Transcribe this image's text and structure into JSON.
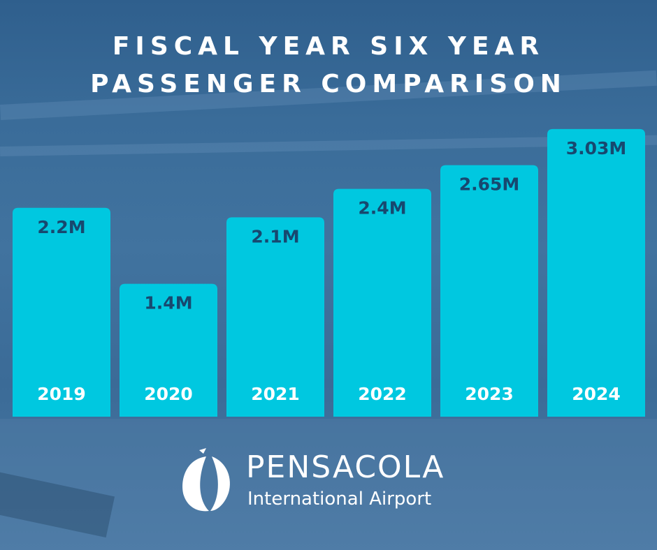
{
  "chart_data": {
    "type": "bar",
    "title_line1": "FISCAL YEAR SIX YEAR",
    "title_line2": "PASSENGER COMPARISON",
    "categories": [
      "2019",
      "2020",
      "2021",
      "2022",
      "2023",
      "2024"
    ],
    "values": [
      2.2,
      1.4,
      2.1,
      2.4,
      2.65,
      3.03
    ],
    "value_labels": [
      "2.2M",
      "1.4M",
      "2.1M",
      "2.4M",
      "2.65M",
      "3.03M"
    ],
    "unit": "M",
    "xlabel": "",
    "ylabel": "",
    "grid": false,
    "bar_color": "#00c8e0",
    "value_label_color": "#17486f",
    "category_label_color": "#ffffff"
  },
  "logo": {
    "name": "PENSACOLA",
    "subtitle": "International Airport",
    "icon": "pensacola-logo-mark-icon"
  }
}
